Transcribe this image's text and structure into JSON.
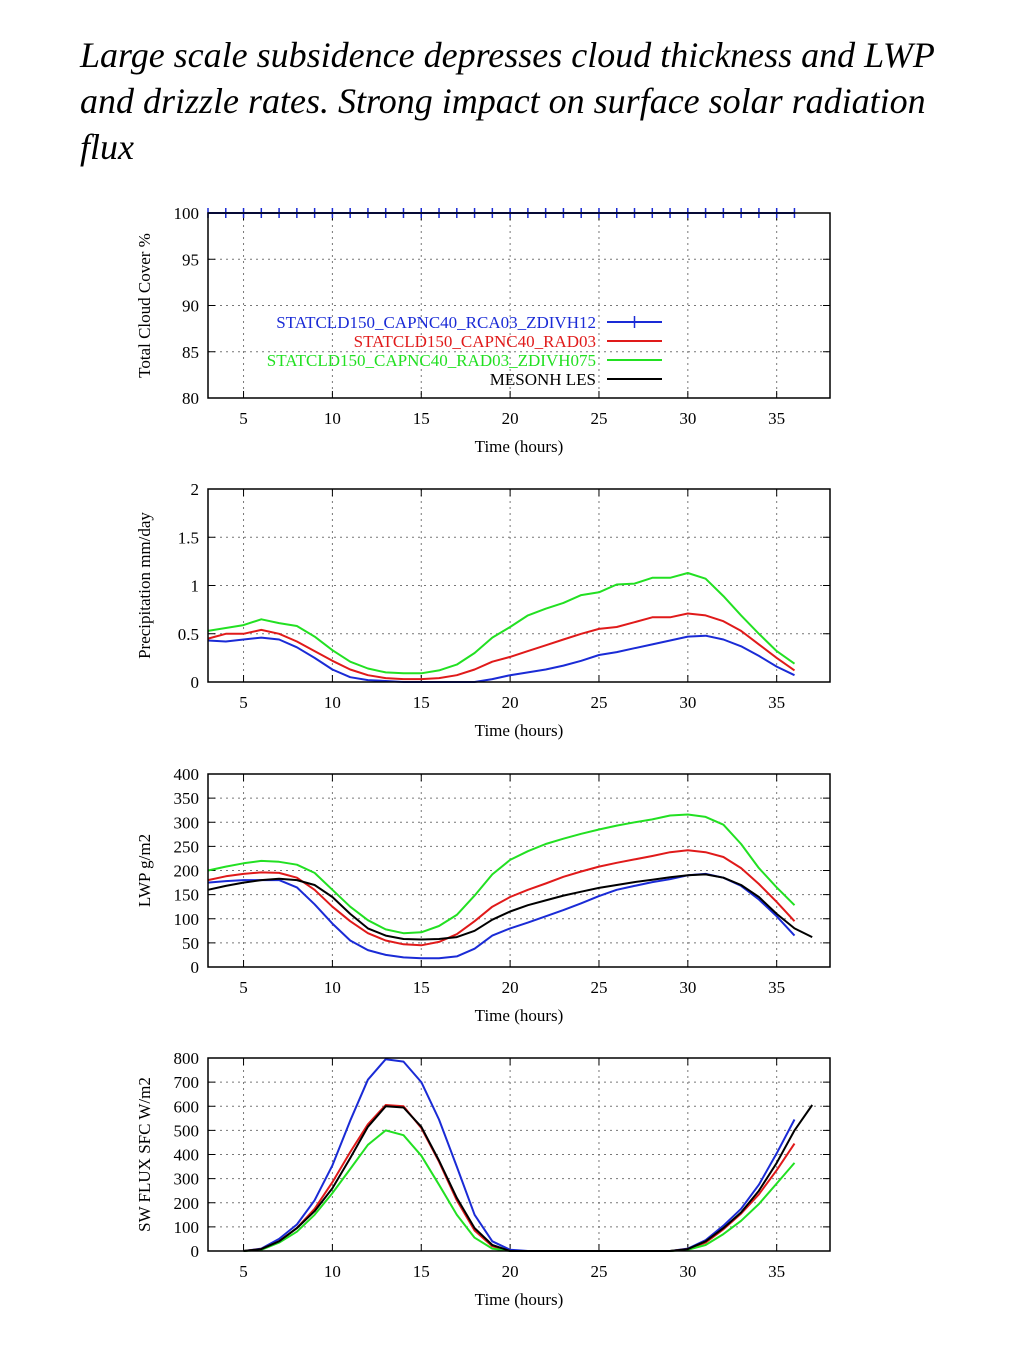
{
  "title": "Large scale subsidence depresses cloud thickness and LWP and drizzle rates. Strong impact on surface solar radiation flux",
  "colors": {
    "STATCLD150_CAPNC40_RCA03_ZDIVH12": "#1a2bd6",
    "STATCLD150_CAPNC40_RAD03": "#e01a1a",
    "STATCLD150_CAPNC40_RAD03_ZDIVH075": "#22e022",
    "MESONH LES": "#000000"
  },
  "chart_data": [
    {
      "type": "line",
      "ylabel": "Total Cloud Cover %",
      "xlabel": "Time (hours)",
      "xlim": [
        3,
        38
      ],
      "ylim": [
        80,
        100
      ],
      "xticks": [
        5,
        10,
        15,
        20,
        25,
        30,
        35
      ],
      "yticks": [
        80,
        85,
        90,
        95,
        100
      ],
      "grid": true,
      "legend": "center",
      "series": [
        {
          "name": "STATCLD150_CAPNC40_RCA03_ZDIVH12",
          "markers": "vertical-tick",
          "x": [
            3,
            4,
            5,
            6,
            7,
            8,
            9,
            10,
            11,
            12,
            13,
            14,
            15,
            16,
            17,
            18,
            19,
            20,
            21,
            22,
            23,
            24,
            25,
            26,
            27,
            28,
            29,
            30,
            31,
            32,
            33,
            34,
            35,
            36
          ],
          "y": [
            100,
            100,
            100,
            100,
            100,
            100,
            100,
            100,
            100,
            100,
            100,
            100,
            100,
            100,
            100,
            100,
            100,
            100,
            100,
            100,
            100,
            100,
            100,
            100,
            100,
            100,
            100,
            100,
            100,
            100,
            100,
            100,
            100,
            100
          ]
        },
        {
          "name": "STATCLD150_CAPNC40_RAD03",
          "x": [],
          "y": []
        },
        {
          "name": "STATCLD150_CAPNC40_RAD03_ZDIVH075",
          "x": [],
          "y": []
        },
        {
          "name": "MESONH LES",
          "x": [],
          "y": []
        }
      ]
    },
    {
      "type": "line",
      "ylabel": "Precipitation mm/day",
      "xlabel": "Time (hours)",
      "xlim": [
        3,
        38
      ],
      "ylim": [
        0,
        2
      ],
      "xticks": [
        5,
        10,
        15,
        20,
        25,
        30,
        35
      ],
      "yticks": [
        0,
        0.5,
        1,
        1.5,
        2
      ],
      "grid": true,
      "series": [
        {
          "name": "STATCLD150_CAPNC40_RCA03_ZDIVH12",
          "x": [
            3,
            4,
            5,
            6,
            7,
            8,
            9,
            10,
            11,
            12,
            13,
            14,
            15,
            16,
            17,
            18,
            19,
            20,
            21,
            22,
            23,
            24,
            25,
            26,
            27,
            28,
            29,
            30,
            31,
            32,
            33,
            34,
            35,
            36
          ],
          "y": [
            0.43,
            0.42,
            0.44,
            0.46,
            0.44,
            0.36,
            0.25,
            0.13,
            0.05,
            0.02,
            0.01,
            0.0,
            0.0,
            0.0,
            0.0,
            0.0,
            0.03,
            0.07,
            0.1,
            0.13,
            0.17,
            0.22,
            0.28,
            0.31,
            0.35,
            0.39,
            0.43,
            0.47,
            0.48,
            0.44,
            0.37,
            0.27,
            0.16,
            0.07
          ]
        },
        {
          "name": "STATCLD150_CAPNC40_RAD03",
          "x": [
            3,
            4,
            5,
            6,
            7,
            8,
            9,
            10,
            11,
            12,
            13,
            14,
            15,
            16,
            17,
            18,
            19,
            20,
            21,
            22,
            23,
            24,
            25,
            26,
            27,
            28,
            29,
            30,
            31,
            32,
            33,
            34,
            35,
            36
          ],
          "y": [
            0.45,
            0.5,
            0.5,
            0.54,
            0.5,
            0.42,
            0.32,
            0.22,
            0.13,
            0.07,
            0.04,
            0.03,
            0.03,
            0.04,
            0.07,
            0.13,
            0.21,
            0.26,
            0.32,
            0.38,
            0.44,
            0.5,
            0.55,
            0.57,
            0.62,
            0.67,
            0.67,
            0.71,
            0.69,
            0.63,
            0.53,
            0.39,
            0.25,
            0.12
          ]
        },
        {
          "name": "STATCLD150_CAPNC40_RAD03_ZDIVH075",
          "x": [
            3,
            4,
            5,
            6,
            7,
            8,
            9,
            10,
            11,
            12,
            13,
            14,
            15,
            16,
            17,
            18,
            19,
            20,
            21,
            22,
            23,
            24,
            25,
            26,
            27,
            28,
            29,
            30,
            31,
            32,
            33,
            34,
            35,
            36
          ],
          "y": [
            0.53,
            0.56,
            0.59,
            0.65,
            0.61,
            0.58,
            0.47,
            0.33,
            0.21,
            0.14,
            0.1,
            0.09,
            0.09,
            0.12,
            0.18,
            0.3,
            0.46,
            0.57,
            0.69,
            0.76,
            0.82,
            0.9,
            0.93,
            1.01,
            1.02,
            1.08,
            1.08,
            1.13,
            1.07,
            0.89,
            0.69,
            0.5,
            0.32,
            0.19
          ]
        },
        {
          "name": "MESONH LES",
          "x": [],
          "y": []
        }
      ]
    },
    {
      "type": "line",
      "ylabel": "LWP g/m2",
      "xlabel": "Time (hours)",
      "xlim": [
        3,
        38
      ],
      "ylim": [
        0,
        400
      ],
      "xticks": [
        5,
        10,
        15,
        20,
        25,
        30,
        35
      ],
      "yticks": [
        0,
        50,
        100,
        150,
        200,
        250,
        300,
        350,
        400
      ],
      "grid": true,
      "series": [
        {
          "name": "STATCLD150_CAPNC40_RCA03_ZDIVH12",
          "x": [
            3,
            4,
            5,
            6,
            7,
            8,
            9,
            10,
            11,
            12,
            13,
            14,
            15,
            16,
            17,
            18,
            19,
            20,
            21,
            22,
            23,
            24,
            25,
            26,
            27,
            28,
            29,
            30,
            31,
            32,
            33,
            34,
            35,
            36
          ],
          "y": [
            175,
            178,
            180,
            180,
            180,
            165,
            130,
            90,
            55,
            35,
            25,
            20,
            18,
            18,
            22,
            38,
            65,
            80,
            92,
            105,
            118,
            132,
            147,
            160,
            168,
            176,
            182,
            190,
            193,
            185,
            168,
            140,
            105,
            65
          ]
        },
        {
          "name": "STATCLD150_CAPNC40_RAD03",
          "x": [
            3,
            4,
            5,
            6,
            7,
            8,
            9,
            10,
            11,
            12,
            13,
            14,
            15,
            16,
            17,
            18,
            19,
            20,
            21,
            22,
            23,
            24,
            25,
            26,
            27,
            28,
            29,
            30,
            31,
            32,
            33,
            34,
            35,
            36
          ],
          "y": [
            180,
            188,
            193,
            196,
            195,
            185,
            160,
            125,
            95,
            70,
            55,
            47,
            45,
            52,
            68,
            95,
            125,
            145,
            160,
            173,
            187,
            198,
            208,
            216,
            223,
            230,
            238,
            242,
            238,
            228,
            205,
            172,
            135,
            95
          ]
        },
        {
          "name": "STATCLD150_CAPNC40_RAD03_ZDIVH075",
          "x": [
            3,
            4,
            5,
            6,
            7,
            8,
            9,
            10,
            11,
            12,
            13,
            14,
            15,
            16,
            17,
            18,
            19,
            20,
            21,
            22,
            23,
            24,
            25,
            26,
            27,
            28,
            29,
            30,
            31,
            32,
            33,
            34,
            35,
            36
          ],
          "y": [
            200,
            208,
            215,
            220,
            218,
            212,
            195,
            160,
            125,
            97,
            78,
            70,
            72,
            85,
            108,
            148,
            192,
            222,
            240,
            255,
            266,
            276,
            285,
            293,
            300,
            306,
            314,
            316,
            311,
            295,
            255,
            205,
            165,
            128
          ]
        },
        {
          "name": "MESONH LES",
          "x": [
            3,
            4,
            5,
            6,
            7,
            8,
            9,
            10,
            11,
            12,
            13,
            14,
            15,
            16,
            17,
            18,
            19,
            20,
            21,
            22,
            23,
            24,
            25,
            26,
            27,
            28,
            29,
            30,
            31,
            32,
            33,
            34,
            35,
            36,
            37
          ],
          "y": [
            160,
            168,
            175,
            180,
            183,
            180,
            170,
            145,
            110,
            80,
            65,
            58,
            57,
            58,
            62,
            75,
            98,
            115,
            128,
            138,
            148,
            156,
            164,
            170,
            176,
            181,
            186,
            190,
            192,
            185,
            170,
            145,
            110,
            80,
            62
          ]
        }
      ]
    },
    {
      "type": "line",
      "ylabel": "SW FLUX SFC W/m2",
      "xlabel": "Time (hours)",
      "xlim": [
        3,
        38
      ],
      "ylim": [
        0,
        800
      ],
      "xticks": [
        5,
        10,
        15,
        20,
        25,
        30,
        35
      ],
      "yticks": [
        0,
        100,
        200,
        300,
        400,
        500,
        600,
        700,
        800
      ],
      "grid": true,
      "series": [
        {
          "name": "STATCLD150_CAPNC40_RCA03_ZDIVH12",
          "x": [
            5,
            6,
            7,
            8,
            9,
            10,
            11,
            12,
            13,
            14,
            15,
            16,
            17,
            18,
            19,
            20,
            21,
            22,
            23,
            24,
            25,
            26,
            27,
            28,
            29,
            30,
            31,
            32,
            33,
            34,
            35,
            36
          ],
          "y": [
            0,
            10,
            50,
            110,
            210,
            355,
            540,
            710,
            795,
            785,
            700,
            545,
            350,
            150,
            40,
            5,
            0,
            0,
            0,
            0,
            0,
            0,
            0,
            0,
            0,
            10,
            45,
            105,
            175,
            275,
            405,
            545
          ]
        },
        {
          "name": "STATCLD150_CAPNC40_RAD03",
          "x": [
            5,
            6,
            7,
            8,
            9,
            10,
            11,
            12,
            13,
            14,
            15,
            16,
            17,
            18,
            19,
            20,
            21,
            22,
            23,
            24,
            25,
            26,
            27,
            28,
            29,
            30,
            31,
            32,
            33,
            34,
            35,
            36
          ],
          "y": [
            0,
            8,
            40,
            95,
            175,
            285,
            410,
            525,
            605,
            600,
            510,
            370,
            210,
            85,
            20,
            0,
            0,
            0,
            0,
            0,
            0,
            0,
            0,
            0,
            0,
            8,
            35,
            90,
            155,
            235,
            335,
            445
          ]
        },
        {
          "name": "STATCLD150_CAPNC40_RAD03_ZDIVH075",
          "x": [
            5,
            6,
            7,
            8,
            9,
            10,
            11,
            12,
            13,
            14,
            15,
            16,
            17,
            18,
            19,
            20,
            21,
            22,
            23,
            24,
            25,
            26,
            27,
            28,
            29,
            30,
            31,
            32,
            33,
            34,
            35,
            36
          ],
          "y": [
            0,
            5,
            35,
            80,
            150,
            240,
            340,
            440,
            500,
            480,
            395,
            275,
            150,
            55,
            10,
            0,
            0,
            0,
            0,
            0,
            0,
            0,
            0,
            0,
            0,
            5,
            25,
            70,
            125,
            195,
            280,
            365
          ]
        },
        {
          "name": "MESONH LES",
          "x": [
            5,
            6,
            7,
            8,
            9,
            10,
            11,
            12,
            13,
            14,
            15,
            16,
            17,
            18,
            19,
            20,
            21,
            22,
            23,
            24,
            25,
            26,
            27,
            28,
            29,
            30,
            31,
            32,
            33,
            34,
            35,
            36,
            37
          ],
          "y": [
            0,
            8,
            40,
            95,
            165,
            260,
            385,
            515,
            600,
            595,
            515,
            375,
            220,
            95,
            25,
            0,
            0,
            0,
            0,
            0,
            0,
            0,
            0,
            0,
            0,
            8,
            40,
            95,
            160,
            250,
            365,
            500,
            605
          ]
        }
      ]
    }
  ]
}
